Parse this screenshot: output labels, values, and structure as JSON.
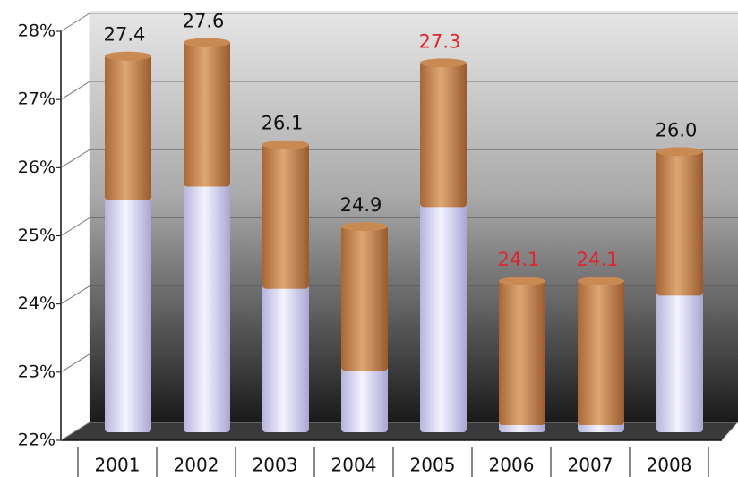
{
  "chart_data": {
    "type": "bar",
    "categories": [
      "2001",
      "2002",
      "2003",
      "2004",
      "2005",
      "2006",
      "2007",
      "2008"
    ],
    "values": [
      27.4,
      27.6,
      26.1,
      24.9,
      27.3,
      24.1,
      24.1,
      26.0
    ],
    "value_labels": [
      "27.4",
      "27.6",
      "26.1",
      "24.9",
      "27.3",
      "24.1",
      "24.1",
      "26.0"
    ],
    "label_colors": [
      "#111111",
      "#111111",
      "#111111",
      "#111111",
      "#e0262c",
      "#e0262c",
      "#e0262c",
      "#111111"
    ],
    "ylim": [
      22,
      28
    ],
    "yticks": [
      {
        "value": 22,
        "label": "22%"
      },
      {
        "value": 23,
        "label": "23%"
      },
      {
        "value": 24,
        "label": "24%"
      },
      {
        "value": 25,
        "label": "25%"
      },
      {
        "value": 26,
        "label": "26%"
      },
      {
        "value": 27,
        "label": "27%"
      },
      {
        "value": 28,
        "label": "28%"
      }
    ],
    "grid": true
  }
}
